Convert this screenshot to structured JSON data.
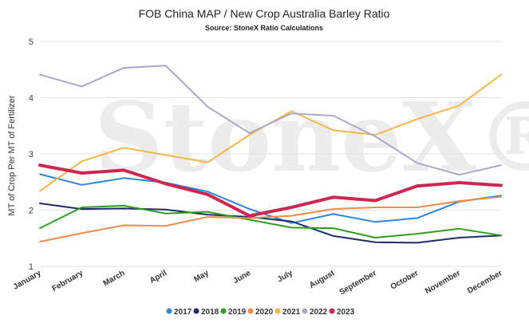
{
  "chart_data": {
    "type": "line",
    "title": "FOB China MAP / New Crop Australia Barley Ratio",
    "subtitle": "Source: StoneX Ratio Calculations",
    "ylabel": "MT of Crop Per MT of Fertilizer",
    "xlabel": "",
    "ylim": [
      1,
      5
    ],
    "yticks": [
      "1",
      "2",
      "3",
      "4",
      "5"
    ],
    "categories": [
      "January",
      "February",
      "March",
      "April",
      "May",
      "June",
      "July",
      "August",
      "September",
      "October",
      "November",
      "December"
    ],
    "grid": true,
    "legend_position": "bottom",
    "watermark": "StoneX®",
    "series": [
      {
        "name": "2017",
        "color": "#2e86de",
        "values": [
          2.64,
          2.45,
          2.57,
          2.49,
          2.33,
          2.02,
          1.77,
          1.93,
          1.79,
          1.86,
          2.15,
          2.26
        ]
      },
      {
        "name": "2018",
        "color": "#1f2a6b",
        "values": [
          2.12,
          2.02,
          2.03,
          2.01,
          1.92,
          1.88,
          1.8,
          1.54,
          1.43,
          1.42,
          1.51,
          1.55
        ]
      },
      {
        "name": "2019",
        "color": "#2e9e1f",
        "values": [
          1.68,
          2.05,
          2.08,
          1.94,
          1.97,
          1.83,
          1.69,
          1.68,
          1.51,
          1.58,
          1.67,
          1.55
        ]
      },
      {
        "name": "2020",
        "color": "#f08a4b",
        "values": [
          1.44,
          1.59,
          1.73,
          1.72,
          1.88,
          1.86,
          1.9,
          2.02,
          2.05,
          2.05,
          2.16,
          2.24
        ]
      },
      {
        "name": "2021",
        "color": "#f4b54a",
        "values": [
          2.34,
          2.87,
          3.11,
          2.98,
          2.85,
          3.34,
          3.76,
          3.42,
          3.34,
          3.62,
          3.86,
          4.41
        ]
      },
      {
        "name": "2022",
        "color": "#aaa8cc",
        "values": [
          4.41,
          4.2,
          4.53,
          4.57,
          3.84,
          3.37,
          3.72,
          3.68,
          3.31,
          2.84,
          2.63,
          2.8
        ]
      },
      {
        "name": "2023",
        "color": "#cc2651",
        "values": [
          2.8,
          2.66,
          2.71,
          2.47,
          2.28,
          1.9,
          2.05,
          2.23,
          2.17,
          2.43,
          2.49,
          2.44
        ],
        "bold": true
      }
    ]
  }
}
